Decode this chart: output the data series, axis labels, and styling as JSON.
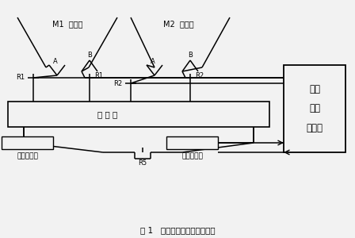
{
  "title": "图 1   配料称量系统结构原理图",
  "bg_color": "#f2f2f2",
  "line_color": "#000000",
  "controller_label": [
    "电子",
    "配料",
    "控制器"
  ],
  "hopper1_label": "M1  储料箱",
  "hopper2_label": "M2  储料箱",
  "scale_box_label": "称 量 箱",
  "sensor_left_label": "称重传感器",
  "sensor_right_label": "称重传感器",
  "R1_left": "R1",
  "R1_right": "R1",
  "R2_left": "R2",
  "R2_right": "R2",
  "R5": "R5",
  "A1": "A",
  "B1": "B",
  "A2": "A",
  "B2": "B"
}
